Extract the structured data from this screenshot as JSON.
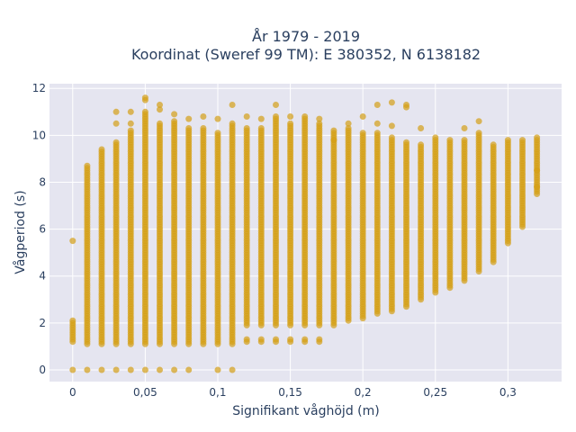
{
  "chart_data": {
    "type": "scatter",
    "title_line1": "År 1979 - 2019",
    "title_line2": "Koordinat (Sweref 99 TM): E 380352, N 6138182",
    "xlabel": "Signifikant våghöjd (m)",
    "ylabel": "Vågperiod (s)",
    "xlim": [
      -0.016,
      0.337
    ],
    "ylim": [
      -0.5,
      12.2
    ],
    "xticks": [
      0,
      0.05,
      0.1,
      0.15,
      0.2,
      0.25,
      0.3
    ],
    "xtick_labels": [
      "0",
      "0,05",
      "0,1",
      "0,15",
      "0,2",
      "0,25",
      "0,3"
    ],
    "yticks": [
      0,
      2,
      4,
      6,
      8,
      10,
      12
    ],
    "ytick_labels": [
      "0",
      "2",
      "4",
      "6",
      "8",
      "10",
      "12"
    ],
    "grid": true,
    "marker_color": "#d4a017",
    "plot_bg": "#e5e5f0",
    "columns": [
      {
        "x": 0.0,
        "ymin": 1.2,
        "ymax": 2.1,
        "extra": [
          5.5,
          0
        ]
      },
      {
        "x": 0.01,
        "ymin": 1.1,
        "ymax": 8.7,
        "extra": [
          0
        ]
      },
      {
        "x": 0.02,
        "ymin": 1.1,
        "ymax": 9.4,
        "extra": [
          0
        ]
      },
      {
        "x": 0.03,
        "ymin": 1.1,
        "ymax": 9.7,
        "extra": [
          10.5,
          11.0,
          0
        ]
      },
      {
        "x": 0.04,
        "ymin": 1.1,
        "ymax": 10.2,
        "extra": [
          11.0,
          10.5,
          0
        ]
      },
      {
        "x": 0.05,
        "ymin": 1.1,
        "ymax": 11.0,
        "extra": [
          11.6,
          11.5,
          0
        ]
      },
      {
        "x": 0.06,
        "ymin": 1.1,
        "ymax": 10.5,
        "extra": [
          11.3,
          11.1,
          0
        ]
      },
      {
        "x": 0.07,
        "ymin": 1.1,
        "ymax": 10.6,
        "extra": [
          10.9,
          0
        ]
      },
      {
        "x": 0.08,
        "ymin": 1.1,
        "ymax": 10.3,
        "extra": [
          10.7,
          0
        ]
      },
      {
        "x": 0.09,
        "ymin": 1.1,
        "ymax": 10.3,
        "extra": [
          10.8
        ]
      },
      {
        "x": 0.1,
        "ymin": 1.1,
        "ymax": 10.1,
        "extra": [
          10.7,
          0
        ]
      },
      {
        "x": 0.11,
        "ymin": 1.1,
        "ymax": 10.5,
        "extra": [
          11.3,
          0
        ]
      },
      {
        "x": 0.12,
        "ymin": 1.9,
        "ymax": 10.3,
        "extra": [
          1.2,
          1.3,
          10.8
        ]
      },
      {
        "x": 0.13,
        "ymin": 1.9,
        "ymax": 10.3,
        "extra": [
          1.2,
          1.3,
          10.7
        ]
      },
      {
        "x": 0.14,
        "ymin": 1.9,
        "ymax": 10.8,
        "extra": [
          1.2,
          1.3,
          11.3
        ]
      },
      {
        "x": 0.15,
        "ymin": 1.9,
        "ymax": 10.5,
        "extra": [
          1.2,
          1.3,
          10.8
        ]
      },
      {
        "x": 0.16,
        "ymin": 1.9,
        "ymax": 10.8,
        "extra": [
          1.2,
          1.3
        ]
      },
      {
        "x": 0.17,
        "ymin": 1.9,
        "ymax": 10.5,
        "extra": [
          1.3,
          1.2,
          10.7
        ]
      },
      {
        "x": 0.18,
        "ymin": 1.9,
        "ymax": 10.2,
        "extra": [
          9.8
        ]
      },
      {
        "x": 0.19,
        "ymin": 2.1,
        "ymax": 10.3,
        "extra": [
          10.5
        ]
      },
      {
        "x": 0.2,
        "ymin": 2.2,
        "ymax": 10.1,
        "extra": [
          10.8
        ]
      },
      {
        "x": 0.21,
        "ymin": 2.4,
        "ymax": 10.1,
        "extra": [
          11.3,
          10.5
        ]
      },
      {
        "x": 0.22,
        "ymin": 2.5,
        "ymax": 9.9,
        "extra": [
          10.4,
          11.4
        ]
      },
      {
        "x": 0.23,
        "ymin": 2.7,
        "ymax": 9.7,
        "extra": [
          11.3,
          11.2
        ]
      },
      {
        "x": 0.24,
        "ymin": 3.0,
        "ymax": 9.6,
        "extra": [
          10.3
        ]
      },
      {
        "x": 0.25,
        "ymin": 3.3,
        "ymax": 9.9,
        "extra": []
      },
      {
        "x": 0.26,
        "ymin": 3.5,
        "ymax": 9.8,
        "extra": []
      },
      {
        "x": 0.27,
        "ymin": 3.8,
        "ymax": 9.8,
        "extra": [
          10.3
        ]
      },
      {
        "x": 0.28,
        "ymin": 4.2,
        "ymax": 10.1,
        "extra": [
          10.6
        ]
      },
      {
        "x": 0.29,
        "ymin": 4.6,
        "ymax": 9.6,
        "extra": []
      },
      {
        "x": 0.3,
        "ymin": 5.4,
        "ymax": 9.8,
        "extra": []
      },
      {
        "x": 0.31,
        "ymin": 6.1,
        "ymax": 9.8,
        "extra": []
      },
      {
        "x": 0.32,
        "ymin": 7.5,
        "ymax": 9.9,
        "extra": [
          7.8,
          8.5
        ]
      }
    ]
  }
}
